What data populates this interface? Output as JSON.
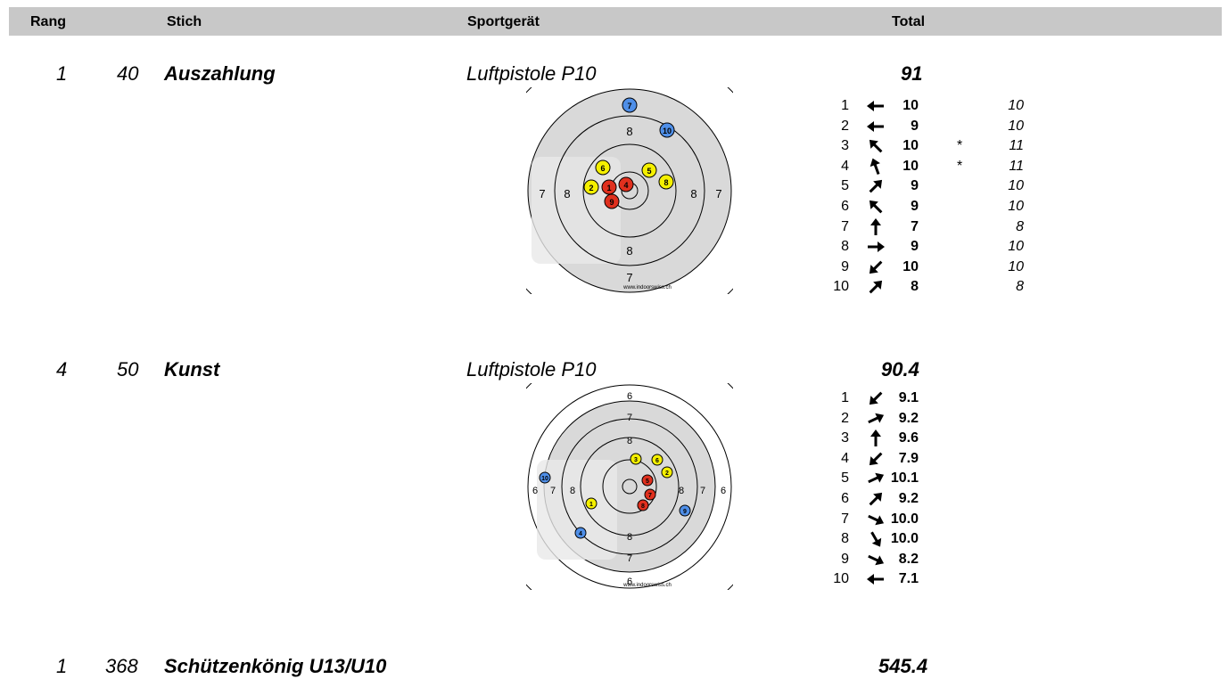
{
  "header": {
    "rang": "Rang",
    "stich": "Stich",
    "sportgeraet": "Sportgerät",
    "total": "Total"
  },
  "colors": {
    "header_bg": "#c8c8c8",
    "red": "#e0301e",
    "yellow": "#f5f000",
    "blue": "#4f8fe8",
    "target_gray": "#d9d9d9"
  },
  "rows": [
    {
      "rang": "1",
      "stich_nr": "40",
      "name": "Auszahlung",
      "device": "Luftpistole P10",
      "total": "91",
      "watermark": "www.indoorswiss.ch",
      "target_rings": [
        "8",
        "7",
        "8",
        "8",
        "7",
        "8",
        "7"
      ],
      "shots": [
        {
          "n": "1",
          "dir": "left",
          "score": "10",
          "star": "",
          "val": "10"
        },
        {
          "n": "2",
          "dir": "left",
          "score": "9",
          "star": "",
          "val": "10"
        },
        {
          "n": "3",
          "dir": "up-left",
          "score": "10",
          "star": "*",
          "val": "11"
        },
        {
          "n": "4",
          "dir": "up-nnw",
          "score": "10",
          "star": "*",
          "val": "11"
        },
        {
          "n": "5",
          "dir": "up-right",
          "score": "9",
          "star": "",
          "val": "10"
        },
        {
          "n": "6",
          "dir": "up-left",
          "score": "9",
          "star": "",
          "val": "10"
        },
        {
          "n": "7",
          "dir": "up",
          "score": "7",
          "star": "",
          "val": "8"
        },
        {
          "n": "8",
          "dir": "right",
          "score": "9",
          "star": "",
          "val": "10"
        },
        {
          "n": "9",
          "dir": "down-left",
          "score": "10",
          "star": "",
          "val": "10"
        },
        {
          "n": "10",
          "dir": "up-right",
          "score": "8",
          "star": "",
          "val": "8"
        }
      ],
      "hits": [
        {
          "label": "7",
          "color": "blue"
        },
        {
          "label": "10",
          "color": "blue"
        },
        {
          "label": "6",
          "color": "yellow"
        },
        {
          "label": "5",
          "color": "yellow"
        },
        {
          "label": "2",
          "color": "yellow"
        },
        {
          "label": "8",
          "color": "yellow"
        },
        {
          "label": "1",
          "color": "red"
        },
        {
          "label": "4",
          "color": "red"
        },
        {
          "label": "9",
          "color": "red"
        }
      ]
    },
    {
      "rang": "4",
      "stich_nr": "50",
      "name": "Kunst",
      "device": "Luftpistole P10",
      "total": "90.4",
      "watermark": "www.indoorswiss.ch",
      "target_rings": [
        "6",
        "7",
        "8",
        "6",
        "7",
        "8",
        "8",
        "7",
        "6",
        "8",
        "7",
        "6"
      ],
      "shots": [
        {
          "n": "1",
          "dir": "down-left",
          "score": "9.1"
        },
        {
          "n": "2",
          "dir": "right-up",
          "score": "9.2"
        },
        {
          "n": "3",
          "dir": "up",
          "score": "9.6"
        },
        {
          "n": "4",
          "dir": "down-left",
          "score": "7.9"
        },
        {
          "n": "5",
          "dir": "right-up",
          "score": "10.1"
        },
        {
          "n": "6",
          "dir": "up-right",
          "score": "9.2"
        },
        {
          "n": "7",
          "dir": "right-down",
          "score": "10.0"
        },
        {
          "n": "8",
          "dir": "down-right",
          "score": "10.0"
        },
        {
          "n": "9",
          "dir": "right-down",
          "score": "8.2"
        },
        {
          "n": "10",
          "dir": "left",
          "score": "7.1"
        }
      ],
      "hits": [
        {
          "label": "10",
          "color": "blue"
        },
        {
          "label": "3",
          "color": "yellow"
        },
        {
          "label": "6",
          "color": "yellow"
        },
        {
          "label": "2",
          "color": "yellow"
        },
        {
          "label": "5",
          "color": "red"
        },
        {
          "label": "7",
          "color": "red"
        },
        {
          "label": "8",
          "color": "red"
        },
        {
          "label": "1",
          "color": "yellow"
        },
        {
          "label": "9",
          "color": "blue"
        },
        {
          "label": "4",
          "color": "blue"
        }
      ]
    },
    {
      "rang": "1",
      "stich_nr": "368",
      "name": "Schützenkönig U13/U10",
      "device": "",
      "total": "545.4"
    }
  ]
}
